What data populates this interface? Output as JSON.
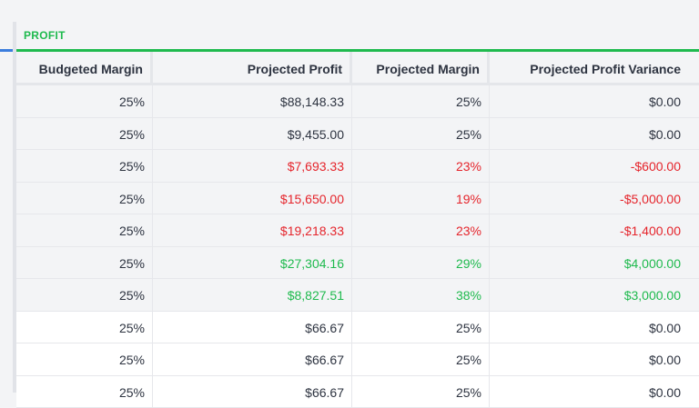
{
  "group": {
    "label": "PROFIT"
  },
  "columns": [
    "Budgeted Margin",
    "Projected Profit",
    "Projected Margin",
    "Projected Profit Variance"
  ],
  "rows": [
    {
      "budgeted_margin": "25%",
      "projected_profit": "$88,148.33",
      "projected_margin": "25%",
      "variance": "$0.00",
      "status": "neutral",
      "shaded": true
    },
    {
      "budgeted_margin": "25%",
      "projected_profit": "$9,455.00",
      "projected_margin": "25%",
      "variance": "$0.00",
      "status": "neutral",
      "shaded": true
    },
    {
      "budgeted_margin": "25%",
      "projected_profit": "$7,693.33",
      "projected_margin": "23%",
      "variance": "-$600.00",
      "status": "neg",
      "shaded": true
    },
    {
      "budgeted_margin": "25%",
      "projected_profit": "$15,650.00",
      "projected_margin": "19%",
      "variance": "-$5,000.00",
      "status": "neg",
      "shaded": true
    },
    {
      "budgeted_margin": "25%",
      "projected_profit": "$19,218.33",
      "projected_margin": "23%",
      "variance": "-$1,400.00",
      "status": "neg",
      "shaded": true
    },
    {
      "budgeted_margin": "25%",
      "projected_profit": "$27,304.16",
      "projected_margin": "29%",
      "variance": "$4,000.00",
      "status": "pos",
      "shaded": true
    },
    {
      "budgeted_margin": "25%",
      "projected_profit": "$8,827.51",
      "projected_margin": "38%",
      "variance": "$3,000.00",
      "status": "pos",
      "shaded": true
    },
    {
      "budgeted_margin": "25%",
      "projected_profit": "$66.67",
      "projected_margin": "25%",
      "variance": "$0.00",
      "status": "neutral",
      "shaded": false
    },
    {
      "budgeted_margin": "25%",
      "projected_profit": "$66.67",
      "projected_margin": "25%",
      "variance": "$0.00",
      "status": "neutral",
      "shaded": false
    },
    {
      "budgeted_margin": "25%",
      "projected_profit": "$66.67",
      "projected_margin": "25%",
      "variance": "$0.00",
      "status": "neutral",
      "shaded": false
    }
  ]
}
